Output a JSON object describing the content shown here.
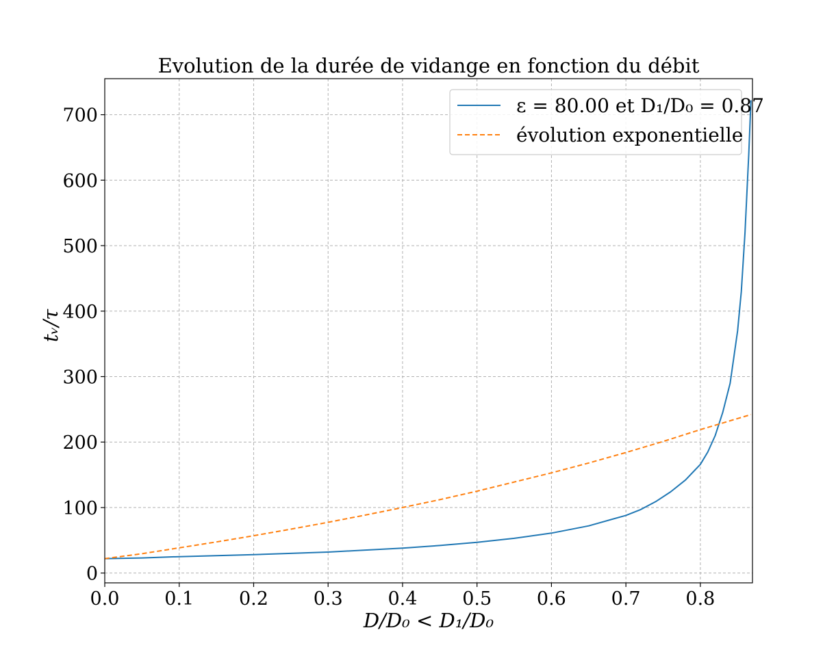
{
  "chart_data": {
    "type": "line",
    "title": "Evolution de la durée de vidange en fonction du débit",
    "xlabel": "D/D₀ < D₁/D₀",
    "ylabel": "tᵥ/τ",
    "xlim": [
      0.0,
      0.87
    ],
    "ylim": [
      -15,
      755
    ],
    "xticks": [
      0.0,
      0.1,
      0.2,
      0.3,
      0.4,
      0.5,
      0.6,
      0.7,
      0.8
    ],
    "xtick_labels": [
      "0.0",
      "0.1",
      "0.2",
      "0.3",
      "0.4",
      "0.5",
      "0.6",
      "0.7",
      "0.8"
    ],
    "yticks": [
      0,
      100,
      200,
      300,
      400,
      500,
      600,
      700
    ],
    "ytick_labels": [
      "0",
      "100",
      "200",
      "300",
      "400",
      "500",
      "600",
      "700"
    ],
    "grid": true,
    "legend_position": "top-right",
    "series": [
      {
        "name": "ε = 80.00 et D₁/D₀ = 0.87",
        "color": "#1f77b4",
        "style": "solid",
        "x": [
          0.0,
          0.05,
          0.1,
          0.15,
          0.2,
          0.25,
          0.3,
          0.35,
          0.4,
          0.45,
          0.5,
          0.55,
          0.6,
          0.65,
          0.7,
          0.72,
          0.74,
          0.76,
          0.78,
          0.8,
          0.81,
          0.82,
          0.83,
          0.84,
          0.85,
          0.855,
          0.86,
          0.865,
          0.868
        ],
        "y": [
          22,
          23,
          25,
          26.5,
          28,
          30,
          32,
          35,
          38,
          42,
          47,
          53,
          61,
          72,
          88,
          97,
          109,
          124,
          142,
          166,
          185,
          210,
          245,
          290,
          370,
          430,
          520,
          640,
          722
        ]
      },
      {
        "name": "évolution exponentielle",
        "color": "#ff7f0e",
        "style": "dashed",
        "x": [
          0.0,
          0.05,
          0.1,
          0.15,
          0.2,
          0.25,
          0.3,
          0.35,
          0.4,
          0.45,
          0.5,
          0.55,
          0.6,
          0.65,
          0.7,
          0.75,
          0.8,
          0.85,
          0.868
        ],
        "y": [
          22,
          29.5,
          38.5,
          47.5,
          57,
          67,
          77.5,
          88.5,
          100,
          112,
          125,
          139,
          153,
          168,
          184,
          201,
          219,
          236,
          242
        ]
      }
    ]
  }
}
